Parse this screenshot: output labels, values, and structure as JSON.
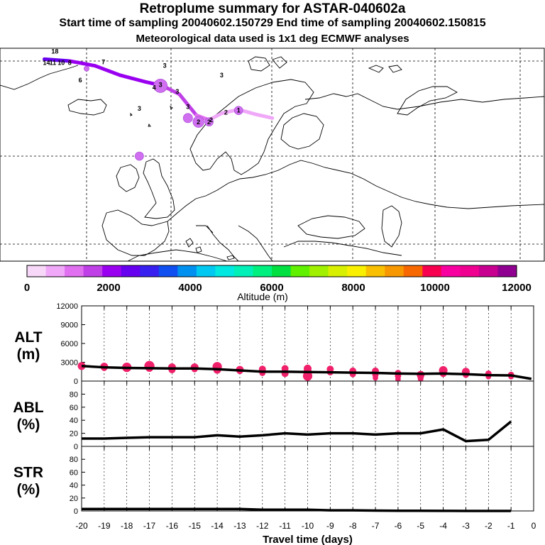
{
  "header": {
    "title": "Retroplume summary for ASTAR-040602a",
    "sampling": "Start time of sampling 20040602.150729     End time of sampling 20040602.150815",
    "met": "Meteorological data used is 1x1 deg ECMWF analyses"
  },
  "map": {
    "markers": [
      {
        "label": "18",
        "lon": -27.5,
        "lat": 73.0
      },
      {
        "label": "14",
        "lon": -29.5,
        "lat": 71.8
      },
      {
        "label": "11",
        "lon": -28.0,
        "lat": 71.8
      },
      {
        "label": "10",
        "lon": -26.0,
        "lat": 71.8
      },
      {
        "label": "8",
        "lon": -24.0,
        "lat": 71.8
      },
      {
        "label": "7",
        "lon": -16.0,
        "lat": 71.9
      },
      {
        "label": "6",
        "lon": -21.5,
        "lat": 70.0
      },
      {
        "label": "4",
        "lon": -4.0,
        "lat": 69.2
      },
      {
        "label": "3",
        "lon": -2.5,
        "lat": 69.5
      },
      {
        "label": "3",
        "lon": -1.5,
        "lat": 71.5
      },
      {
        "label": "3",
        "lon": 1.5,
        "lat": 68.8
      },
      {
        "label": "3",
        "lon": 4.0,
        "lat": 67.2
      },
      {
        "label": "3",
        "lon": 12.0,
        "lat": 70.5
      },
      {
        "label": "3",
        "lon": -7.5,
        "lat": 67.0
      },
      {
        "label": "2",
        "lon": 6.5,
        "lat": 65.6
      },
      {
        "label": "2",
        "lon": 9.0,
        "lat": 65.6
      },
      {
        "label": "2",
        "lon": 9.5,
        "lat": 65.8
      },
      {
        "label": "2",
        "lon": 13.0,
        "lat": 66.6
      },
      {
        "label": "1",
        "lon": 16.0,
        "lat": 66.8
      }
    ],
    "plume": [
      {
        "lon": -30,
        "lat": 72.2,
        "alt": 2400
      },
      {
        "lon": -24,
        "lat": 72.0,
        "alt": 2200
      },
      {
        "lon": -18,
        "lat": 71.5,
        "alt": 2100
      },
      {
        "lon": -12,
        "lat": 70.5,
        "alt": 2000
      },
      {
        "lon": -6,
        "lat": 69.8,
        "alt": 1900
      },
      {
        "lon": -2,
        "lat": 69.4,
        "alt": 1700
      },
      {
        "lon": 2,
        "lat": 68.5,
        "alt": 1400
      },
      {
        "lon": 6,
        "lat": 66.3,
        "alt": 1100
      },
      {
        "lon": 9,
        "lat": 65.8,
        "alt": 900
      },
      {
        "lon": 12,
        "lat": 66.5,
        "alt": 800
      },
      {
        "lon": 16,
        "lat": 66.9,
        "alt": 600
      },
      {
        "lon": 20,
        "lat": 66.4,
        "alt": 500
      },
      {
        "lon": 24,
        "lat": 66.0,
        "alt": 400
      }
    ],
    "blobs": [
      {
        "lon": -2.5,
        "lat": 69.4,
        "size": 1.6
      },
      {
        "lon": 4.0,
        "lat": 66.0,
        "size": 1.1
      },
      {
        "lon": 6.5,
        "lat": 65.6,
        "size": 1.3
      },
      {
        "lon": 9.0,
        "lat": 65.6,
        "size": 1.0
      },
      {
        "lon": 16.0,
        "lat": 66.8,
        "size": 1.0
      },
      {
        "lon": -7.5,
        "lat": 62.0,
        "size": 1.0
      },
      {
        "lon": -20.0,
        "lat": 71.2,
        "size": 0.6
      }
    ]
  },
  "colorbar": {
    "title": "Altitude (m)",
    "tick_labels": [
      "0",
      "2000",
      "4000",
      "6000",
      "8000",
      "10000",
      "12000"
    ],
    "colors": [
      "#f8d8f8",
      "#f0a8f8",
      "#e070f0",
      "#c040e8",
      "#9a00f0",
      "#6800f0",
      "#3820f0",
      "#1050f0",
      "#0090f0",
      "#00c8f0",
      "#00e8e0",
      "#00f0b8",
      "#00f080",
      "#00e040",
      "#60f000",
      "#a0f000",
      "#d8f000",
      "#f8f000",
      "#f8c000",
      "#f89800",
      "#f86800",
      "#f80050",
      "#f800a0",
      "#f00090",
      "#c80090",
      "#900090"
    ]
  },
  "chart_data": [
    {
      "type": "line",
      "panel": "ALT",
      "title": "",
      "ylabel": "ALT\n(m)",
      "ylabel_lines": [
        "ALT",
        "(m)"
      ],
      "xlim": [
        -20,
        0
      ],
      "ylim": [
        0,
        12000
      ],
      "yticks": [
        "0",
        "3000",
        "6000",
        "9000",
        "12000"
      ],
      "x": [
        -20,
        -19,
        -18,
        -17,
        -16,
        -15,
        -14,
        -13,
        -12,
        -11,
        -10,
        -9,
        -8,
        -7,
        -6,
        -5,
        -4,
        -3,
        -2,
        -1,
        -0.1
      ],
      "values": [
        2400,
        2200,
        2100,
        2050,
        2000,
        2000,
        1900,
        1700,
        1500,
        1500,
        1450,
        1400,
        1350,
        1300,
        1200,
        1150,
        1200,
        1100,
        950,
        900,
        350
      ],
      "clusters": [
        {
          "x": -20,
          "points": [
            {
              "y": 2400,
              "s": 1.0
            }
          ]
        },
        {
          "x": -19,
          "points": [
            {
              "y": 2300,
              "s": 1.0
            },
            {
              "y": 2100,
              "s": 0.8
            }
          ]
        },
        {
          "x": -18,
          "points": [
            {
              "y": 2200,
              "s": 1.2
            },
            {
              "y": 2000,
              "s": 0.9
            }
          ]
        },
        {
          "x": -17,
          "points": [
            {
              "y": 2400,
              "s": 1.3
            },
            {
              "y": 2100,
              "s": 1.0
            }
          ]
        },
        {
          "x": -16,
          "points": [
            {
              "y": 2200,
              "s": 1.0
            },
            {
              "y": 1800,
              "s": 0.9
            }
          ]
        },
        {
          "x": -15,
          "points": [
            {
              "y": 2200,
              "s": 1.0
            },
            {
              "y": 1900,
              "s": 0.8
            }
          ]
        },
        {
          "x": -14,
          "points": [
            {
              "y": 2300,
              "s": 1.2
            },
            {
              "y": 1800,
              "s": 1.0
            }
          ]
        },
        {
          "x": -13,
          "points": [
            {
              "y": 1800,
              "s": 1.0
            },
            {
              "y": 1600,
              "s": 0.8
            }
          ]
        },
        {
          "x": -12,
          "points": [
            {
              "y": 1900,
              "s": 0.9
            },
            {
              "y": 1300,
              "s": 0.8
            }
          ]
        },
        {
          "x": -11,
          "points": [
            {
              "y": 2000,
              "s": 0.9
            },
            {
              "y": 1200,
              "s": 0.9
            }
          ]
        },
        {
          "x": -10,
          "points": [
            {
              "y": 2000,
              "s": 1.0
            },
            {
              "y": 1400,
              "s": 1.1
            },
            {
              "y": 800,
              "s": 1.2
            }
          ]
        },
        {
          "x": -9,
          "points": [
            {
              "y": 1900,
              "s": 0.9
            },
            {
              "y": 1400,
              "s": 0.8
            }
          ]
        },
        {
          "x": -8,
          "points": [
            {
              "y": 1600,
              "s": 0.9
            },
            {
              "y": 1100,
              "s": 0.8
            }
          ]
        },
        {
          "x": -7,
          "points": [
            {
              "y": 1600,
              "s": 0.9
            },
            {
              "y": 1000,
              "s": 0.8
            },
            {
              "y": 500,
              "s": 0.7
            }
          ]
        },
        {
          "x": -6,
          "points": [
            {
              "y": 1300,
              "s": 0.8
            },
            {
              "y": 800,
              "s": 0.8
            },
            {
              "y": 300,
              "s": 0.7
            }
          ]
        },
        {
          "x": -5,
          "points": [
            {
              "y": 1000,
              "s": 1.0
            },
            {
              "y": 600,
              "s": 0.8
            },
            {
              "y": 300,
              "s": 0.7
            }
          ]
        },
        {
          "x": -4,
          "points": [
            {
              "y": 1700,
              "s": 1.1
            },
            {
              "y": 1200,
              "s": 0.9
            }
          ]
        },
        {
          "x": -3,
          "points": [
            {
              "y": 1500,
              "s": 1.0
            },
            {
              "y": 1000,
              "s": 0.8
            }
          ]
        },
        {
          "x": -2,
          "points": [
            {
              "y": 1200,
              "s": 0.8
            },
            {
              "y": 700,
              "s": 0.7
            }
          ]
        },
        {
          "x": -1,
          "points": [
            {
              "y": 1000,
              "s": 0.8
            },
            {
              "y": 700,
              "s": 0.7
            }
          ]
        }
      ]
    },
    {
      "type": "line",
      "panel": "ABL",
      "title": "",
      "ylabel": "ABL\n(%)",
      "ylabel_lines": [
        "ABL",
        "(%)"
      ],
      "xlim": [
        -20,
        0
      ],
      "ylim": [
        0,
        100
      ],
      "yticks": [
        "0",
        "20",
        "40",
        "60",
        "80"
      ],
      "x": [
        -20,
        -19,
        -18,
        -17,
        -16,
        -15,
        -14,
        -13,
        -12,
        -11,
        -10,
        -9,
        -8,
        -7,
        -6,
        -5,
        -4,
        -3,
        -2,
        -1
      ],
      "values": [
        12,
        12,
        13,
        14,
        14,
        14,
        17,
        15,
        17,
        20,
        18,
        20,
        20,
        18,
        20,
        20,
        26,
        8,
        10,
        38
      ]
    },
    {
      "type": "line",
      "panel": "STR",
      "title": "",
      "ylabel": "STR\n(%)",
      "ylabel_lines": [
        "STR",
        "(%)"
      ],
      "xlim": [
        -20,
        0
      ],
      "ylim": [
        0,
        100
      ],
      "yticks": [
        "0",
        "20",
        "40",
        "60",
        "80"
      ],
      "xlabel": "Travel time (days)",
      "xticks": [
        "-20",
        "-19",
        "-18",
        "-17",
        "-16",
        "-15",
        "-14",
        "-13",
        "-12",
        "-11",
        "-10",
        "-9",
        "-8",
        "-7",
        "-6",
        "-5",
        "-4",
        "-3",
        "-2",
        "-1",
        "0"
      ],
      "x": [
        -20,
        -19,
        -18,
        -17,
        -16,
        -15,
        -14,
        -13,
        -12,
        -11,
        -10,
        -9,
        -8,
        -7,
        -6,
        -5,
        -4,
        -3,
        -2,
        -1
      ],
      "values": [
        3,
        3,
        3,
        3,
        3,
        3,
        3,
        3,
        2,
        2,
        2,
        1,
        1,
        0.5,
        0.3,
        0.2,
        0.1,
        0,
        0,
        0
      ]
    }
  ]
}
